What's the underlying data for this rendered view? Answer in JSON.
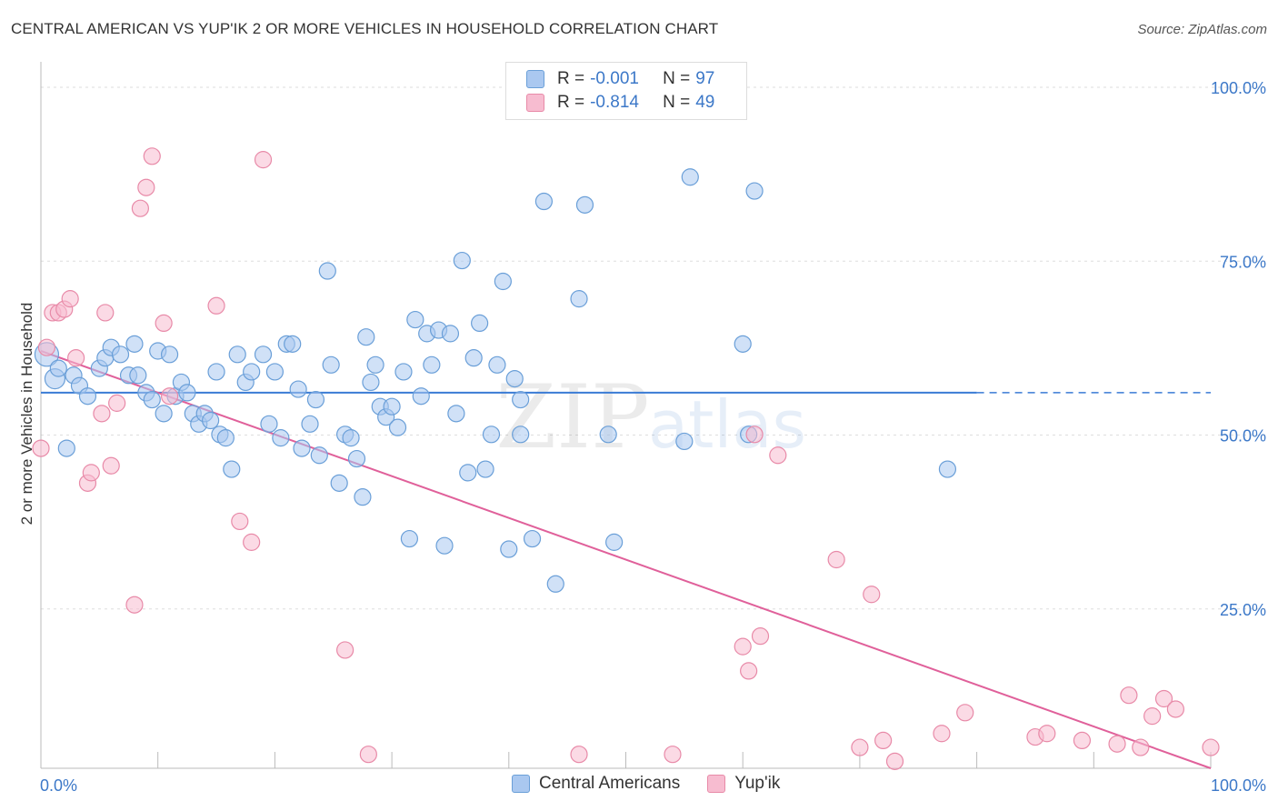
{
  "header": {
    "title": "CENTRAL AMERICAN VS YUP'IK 2 OR MORE VEHICLES IN HOUSEHOLD CORRELATION CHART",
    "source": "Source: ZipAtlas.com"
  },
  "legend_top": {
    "rows": [
      {
        "r_label": "R = ",
        "r_value": "-0.001",
        "n_label": "N = ",
        "n_value": "97"
      },
      {
        "r_label": "R = ",
        "r_value": "-0.814",
        "n_label": "N = ",
        "n_value": "49"
      }
    ]
  },
  "watermark": {
    "zip": "ZIP",
    "atlas": "atlas"
  },
  "colors": {
    "blue_fill": "#aac8f0",
    "blue_stroke": "#6a9fd8",
    "blue_line": "#3a7bd5",
    "pink_fill": "#f7bcd0",
    "pink_stroke": "#e88aa8",
    "pink_line": "#e0609a",
    "axis_text": "#3c78c8",
    "grid": "#dddddd"
  },
  "chart_data": {
    "type": "scatter",
    "title": "CENTRAL AMERICAN VS YUP'IK 2 OR MORE VEHICLES IN HOUSEHOLD CORRELATION CHART",
    "xlabel": "",
    "ylabel": "2 or more Vehicles in Household",
    "xlim": [
      0,
      100
    ],
    "ylim": [
      0,
      100
    ],
    "x_ticks": [
      "0.0%",
      "100.0%"
    ],
    "y_ticks": [
      {
        "value": 25,
        "label": "25.0%"
      },
      {
        "value": 50,
        "label": "50.0%"
      },
      {
        "value": 75,
        "label": "75.0%"
      },
      {
        "value": 100,
        "label": "100.0%"
      }
    ],
    "grid": true,
    "series": [
      {
        "name": "Central Americans",
        "color": "#aac8f0",
        "trend": {
          "x": [
            0,
            80
          ],
          "y": [
            54.0,
            54.0
          ],
          "dashed_to": 100
        },
        "points": [
          [
            0.5,
            59.5,
            3
          ],
          [
            1.2,
            56,
            2
          ],
          [
            1.5,
            57.5,
            1
          ],
          [
            2.2,
            46,
            1
          ],
          [
            2.8,
            56.5,
            1
          ],
          [
            3.3,
            55,
            1
          ],
          [
            4,
            53.5,
            1
          ],
          [
            5,
            57.5,
            1
          ],
          [
            5.5,
            59,
            1
          ],
          [
            6,
            60.5,
            1
          ],
          [
            6.8,
            59.5,
            1
          ],
          [
            7.5,
            56.5,
            1
          ],
          [
            8,
            61,
            1
          ],
          [
            8.3,
            56.5,
            1
          ],
          [
            9,
            54,
            1
          ],
          [
            9.5,
            53,
            1
          ],
          [
            10,
            60,
            1
          ],
          [
            10.5,
            51,
            1
          ],
          [
            11,
            59.5,
            1
          ],
          [
            11.5,
            53.5,
            1
          ],
          [
            12,
            55.5,
            1
          ],
          [
            12.5,
            54,
            1
          ],
          [
            13,
            51,
            1
          ],
          [
            13.5,
            49.5,
            1
          ],
          [
            14,
            51,
            1
          ],
          [
            14.5,
            50,
            1
          ],
          [
            15,
            57,
            1
          ],
          [
            15.3,
            48,
            1
          ],
          [
            15.8,
            47.5,
            1
          ],
          [
            16.3,
            43,
            1
          ],
          [
            16.8,
            59.5,
            1
          ],
          [
            17.5,
            55.5,
            1
          ],
          [
            18,
            57,
            1
          ],
          [
            19,
            59.5,
            1
          ],
          [
            19.5,
            49.5,
            1
          ],
          [
            20,
            57,
            1
          ],
          [
            20.5,
            47.5,
            1
          ],
          [
            21,
            61,
            1
          ],
          [
            21.5,
            61,
            1
          ],
          [
            22,
            54.5,
            1
          ],
          [
            22.3,
            46,
            1
          ],
          [
            23,
            49.5,
            1
          ],
          [
            23.5,
            53,
            1
          ],
          [
            23.8,
            45,
            1
          ],
          [
            24.5,
            71.5,
            1
          ],
          [
            24.8,
            58,
            1
          ],
          [
            25.5,
            41,
            1
          ],
          [
            26,
            48,
            1
          ],
          [
            26.5,
            47.5,
            1
          ],
          [
            27,
            44.5,
            1
          ],
          [
            27.5,
            39,
            1
          ],
          [
            27.8,
            62,
            1
          ],
          [
            28.2,
            55.5,
            1
          ],
          [
            28.6,
            58,
            1
          ],
          [
            29,
            52,
            1
          ],
          [
            29.5,
            50.5,
            1
          ],
          [
            30,
            52,
            1
          ],
          [
            30.5,
            49,
            1
          ],
          [
            31,
            57,
            1
          ],
          [
            31.5,
            33,
            1
          ],
          [
            32,
            64.5,
            1
          ],
          [
            32.5,
            53.5,
            1
          ],
          [
            33,
            62.5,
            1
          ],
          [
            33.4,
            58,
            1
          ],
          [
            34,
            63,
            1
          ],
          [
            34.5,
            32,
            1
          ],
          [
            35,
            62.5,
            1
          ],
          [
            35.5,
            51,
            1
          ],
          [
            36,
            73,
            1
          ],
          [
            36.5,
            42.5,
            1
          ],
          [
            37,
            59,
            1
          ],
          [
            37.5,
            64,
            1
          ],
          [
            38,
            43,
            1
          ],
          [
            38.5,
            48,
            1
          ],
          [
            39,
            58,
            1
          ],
          [
            39.5,
            70,
            1
          ],
          [
            40,
            31.5,
            1
          ],
          [
            40.5,
            56,
            1
          ],
          [
            41,
            53,
            1
          ],
          [
            41,
            48,
            1
          ],
          [
            42,
            33,
            1
          ],
          [
            43,
            81.5,
            1
          ],
          [
            44,
            26.5,
            1
          ],
          [
            46,
            67.5,
            1
          ],
          [
            46.5,
            81,
            1
          ],
          [
            48.5,
            48,
            1
          ],
          [
            49,
            32.5,
            1
          ],
          [
            55,
            47,
            1
          ],
          [
            55.5,
            85,
            1
          ],
          [
            60,
            61,
            1
          ],
          [
            60.5,
            48,
            1
          ],
          [
            61,
            83,
            1
          ],
          [
            77.5,
            43,
            1
          ]
        ]
      },
      {
        "name": "Yup'ik",
        "color": "#f7bcd0",
        "trend": {
          "x": [
            0,
            100
          ],
          "y": [
            60,
            0
          ]
        },
        "points": [
          [
            0,
            46,
            1
          ],
          [
            0.5,
            60.5,
            1
          ],
          [
            1,
            65.5,
            1
          ],
          [
            1.5,
            65.5,
            1
          ],
          [
            2,
            66,
            1
          ],
          [
            2.5,
            67.5,
            1
          ],
          [
            3,
            59,
            1
          ],
          [
            4,
            41,
            1
          ],
          [
            4.3,
            42.5,
            1
          ],
          [
            5.2,
            51,
            1
          ],
          [
            5.5,
            65.5,
            1
          ],
          [
            6,
            43.5,
            1
          ],
          [
            6.5,
            52.5,
            1
          ],
          [
            8,
            23.5,
            1
          ],
          [
            8.5,
            80.5,
            1
          ],
          [
            9,
            83.5,
            1
          ],
          [
            9.5,
            88,
            1
          ],
          [
            10.5,
            64,
            1
          ],
          [
            11,
            53.5,
            1
          ],
          [
            15,
            66.5,
            1
          ],
          [
            17,
            35.5,
            1
          ],
          [
            18,
            32.5,
            1
          ],
          [
            19,
            87.5,
            1
          ],
          [
            26,
            17,
            1
          ],
          [
            28,
            2,
            1
          ],
          [
            46,
            2,
            1
          ],
          [
            54,
            2,
            1
          ],
          [
            60,
            17.5,
            1
          ],
          [
            60.5,
            14,
            1
          ],
          [
            61,
            48,
            1
          ],
          [
            61.5,
            19,
            1
          ],
          [
            63,
            45,
            1
          ],
          [
            68,
            30,
            1
          ],
          [
            70,
            3,
            1
          ],
          [
            71,
            25,
            1
          ],
          [
            72,
            4,
            1
          ],
          [
            73,
            1,
            1
          ],
          [
            77,
            5,
            1
          ],
          [
            79,
            8,
            1
          ],
          [
            85,
            4.5,
            1
          ],
          [
            86,
            5,
            1
          ],
          [
            89,
            4,
            1
          ],
          [
            92,
            3.5,
            1
          ],
          [
            93,
            10.5,
            1
          ],
          [
            94,
            3,
            1
          ],
          [
            95,
            7.5,
            1
          ],
          [
            96,
            10,
            1
          ],
          [
            97,
            8.5,
            1
          ],
          [
            100,
            3,
            1
          ]
        ]
      }
    ]
  }
}
